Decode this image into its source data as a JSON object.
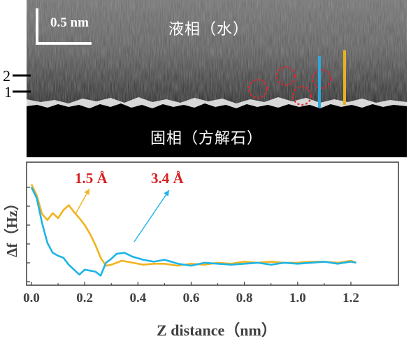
{
  "afm_image": {
    "scale_bar_label": "0.5 nm",
    "liquid_phase_label": "液相（水）",
    "solid_phase_label": "固相（方解石）",
    "layer_labels": [
      "2",
      "1"
    ],
    "colors": {
      "dashed_circles": "#e0262a",
      "blue_marker": "#2ea8e0",
      "yellow_marker": "#e8b21e"
    }
  },
  "chart_data": {
    "type": "line",
    "xlabel": "Z distance（nm）",
    "ylabel": "Δf（Hz）",
    "xlim": [
      0,
      1.25
    ],
    "x_ticks": [
      "0.0",
      "0.2",
      "0.4",
      "0.6",
      "0.8",
      "1.0",
      "1.2"
    ],
    "x_tick_values": [
      0.0,
      0.2,
      0.4,
      0.6,
      0.8,
      1.0,
      1.2
    ],
    "y_ticks_labeled": false,
    "annotations": [
      {
        "text": "1.5 Å",
        "color": "#d62020",
        "points_to_series": 0
      },
      {
        "text": "3.4 Å",
        "color": "#d62020",
        "points_to_series": 1
      }
    ],
    "series": [
      {
        "color": "#f0b41e",
        "x": [
          0.0,
          0.02,
          0.04,
          0.06,
          0.08,
          0.1,
          0.12,
          0.14,
          0.16,
          0.18,
          0.2,
          0.22,
          0.24,
          0.26,
          0.28,
          0.3,
          0.34,
          0.38,
          0.42,
          0.46,
          0.5,
          0.55,
          0.6,
          0.65,
          0.7,
          0.75,
          0.8,
          0.85,
          0.9,
          0.95,
          1.0,
          1.05,
          1.1,
          1.15,
          1.2,
          1.22
        ],
        "y": [
          0.96,
          0.85,
          0.66,
          0.6,
          0.67,
          0.62,
          0.7,
          0.75,
          0.68,
          0.62,
          0.55,
          0.46,
          0.35,
          0.22,
          0.14,
          0.15,
          0.19,
          0.17,
          0.15,
          0.16,
          0.16,
          0.14,
          0.16,
          0.15,
          0.17,
          0.16,
          0.18,
          0.17,
          0.18,
          0.17,
          0.17,
          0.18,
          0.18,
          0.17,
          0.19,
          0.17
        ]
      },
      {
        "color": "#1eb4e6",
        "x": [
          0.0,
          0.02,
          0.04,
          0.06,
          0.08,
          0.1,
          0.12,
          0.14,
          0.16,
          0.18,
          0.2,
          0.22,
          0.24,
          0.26,
          0.28,
          0.3,
          0.32,
          0.35,
          0.38,
          0.42,
          0.46,
          0.5,
          0.55,
          0.6,
          0.65,
          0.7,
          0.75,
          0.8,
          0.85,
          0.9,
          0.95,
          1.0,
          1.05,
          1.1,
          1.15,
          1.2,
          1.22
        ],
        "y": [
          0.93,
          0.82,
          0.57,
          0.37,
          0.27,
          0.24,
          0.22,
          0.15,
          0.1,
          0.05,
          0.1,
          0.09,
          0.08,
          0.04,
          0.17,
          0.21,
          0.26,
          0.27,
          0.23,
          0.2,
          0.18,
          0.2,
          0.16,
          0.14,
          0.17,
          0.16,
          0.15,
          0.16,
          0.17,
          0.15,
          0.17,
          0.16,
          0.17,
          0.18,
          0.16,
          0.18,
          0.17
        ]
      }
    ]
  }
}
